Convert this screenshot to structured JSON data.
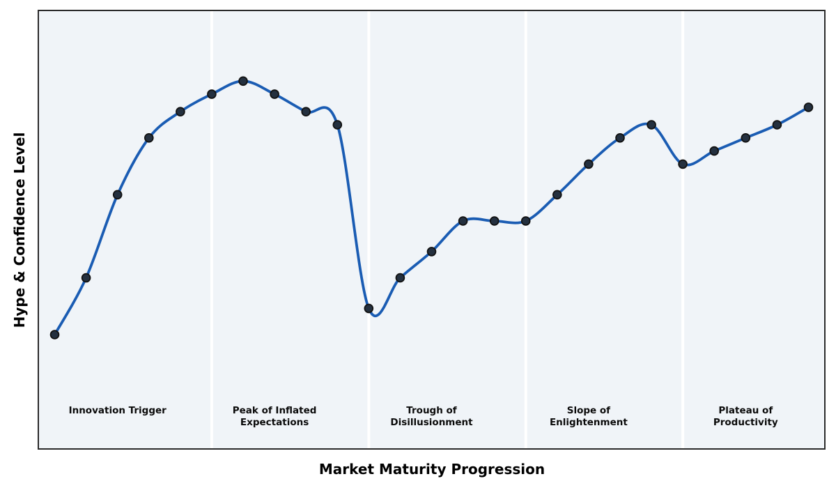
{
  "chart_data": {
    "type": "line",
    "title": "",
    "xlabel": "Market Maturity Progression",
    "ylabel": "Hype & Confidence Level",
    "x": [
      0,
      1,
      2,
      3,
      4,
      5,
      6,
      7,
      8,
      9,
      10,
      11,
      12,
      13,
      14,
      15,
      16,
      17,
      18,
      19,
      20,
      21,
      22,
      23,
      24
    ],
    "values": [
      26,
      39,
      58,
      71,
      77,
      81,
      84,
      81,
      77,
      74,
      32,
      39,
      45,
      52,
      52,
      52,
      58,
      65,
      71,
      74,
      65,
      68,
      71,
      74,
      78
    ],
    "xlim": [
      -0.5,
      24.5
    ],
    "ylim": [
      0,
      100
    ],
    "ticks": "none",
    "legend": "none",
    "grid": "vertical white phase dividers only",
    "phase_dividers_x": [
      5,
      10,
      15,
      20
    ],
    "phases": [
      {
        "label": "Innovation Trigger",
        "center_x": 2
      },
      {
        "label": "Peak of Inflated\nExpectations",
        "center_x": 7
      },
      {
        "label": "Trough of\nDisillusionment",
        "center_x": 12
      },
      {
        "label": "Slope of\nEnlightenment",
        "center_x": 17
      },
      {
        "label": "Plateau of\nProductivity",
        "center_x": 22
      }
    ],
    "style": {
      "line_color": "#1a5cb3",
      "line_width": 3.8,
      "marker_fill": "#24303f",
      "marker_edge": "#111111",
      "marker_edge_width": 1.8,
      "marker_radius": 5.9,
      "plot_background": "#f0f4f8",
      "divider_color": "#ffffff",
      "divider_width": 4,
      "border_color": "#2a2a2a",
      "figure_background": "#ffffff",
      "text_color": "#000000"
    }
  }
}
